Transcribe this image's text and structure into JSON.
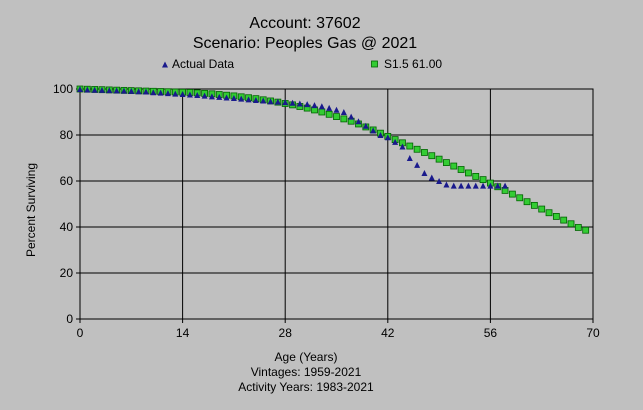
{
  "chart_data": {
    "type": "scatter",
    "title": "Account: 37602",
    "subtitle": "Scenario: Peoples Gas @ 2021",
    "xlabel": "Age (Years)",
    "ylabel": "Percent Surviving",
    "notes": [
      "Vintages: 1959-2021",
      "Activity Years: 1983-2021"
    ],
    "xlim": [
      0,
      70
    ],
    "ylim": [
      0,
      100
    ],
    "xticks": [
      0,
      14,
      28,
      42,
      56,
      70
    ],
    "yticks": [
      0,
      20,
      40,
      60,
      80,
      100
    ],
    "grid": true,
    "legend_position": "top",
    "series": [
      {
        "name": "Actual Data",
        "marker": "triangle",
        "color": "#1a1a8c",
        "points": [
          [
            0,
            100
          ],
          [
            1,
            99.8
          ],
          [
            2,
            99.7
          ],
          [
            3,
            99.6
          ],
          [
            4,
            99.5
          ],
          [
            5,
            99.4
          ],
          [
            6,
            99.3
          ],
          [
            7,
            99.2
          ],
          [
            8,
            99.0
          ],
          [
            9,
            98.9
          ],
          [
            10,
            98.6
          ],
          [
            11,
            98.4
          ],
          [
            12,
            98.2
          ],
          [
            13,
            98.0
          ],
          [
            14,
            97.8
          ],
          [
            15,
            97.6
          ],
          [
            16,
            97.4
          ],
          [
            17,
            97.1
          ],
          [
            18,
            96.8
          ],
          [
            19,
            96.6
          ],
          [
            20,
            96.3
          ],
          [
            21,
            96.1
          ],
          [
            22,
            95.8
          ],
          [
            23,
            95.5
          ],
          [
            24,
            95.2
          ],
          [
            25,
            95.0
          ],
          [
            26,
            94.7
          ],
          [
            27,
            94.5
          ],
          [
            28,
            94.3
          ],
          [
            29,
            94.0
          ],
          [
            30,
            93.7
          ],
          [
            31,
            93.4
          ],
          [
            32,
            93.0
          ],
          [
            33,
            92.5
          ],
          [
            34,
            91.8
          ],
          [
            35,
            91.0
          ],
          [
            36,
            90.0
          ],
          [
            37,
            88.0
          ],
          [
            38,
            86.0
          ],
          [
            39,
            84.0
          ],
          [
            40,
            82.0
          ],
          [
            41,
            80.0
          ],
          [
            42,
            79.0
          ],
          [
            43,
            77.0
          ],
          [
            44,
            75.0
          ],
          [
            45,
            70.0
          ],
          [
            46,
            67.0
          ],
          [
            47,
            63.5
          ],
          [
            48,
            61.5
          ],
          [
            49,
            60.0
          ],
          [
            50,
            58.5
          ],
          [
            51,
            58.0
          ],
          [
            52,
            58.0
          ],
          [
            53,
            58.0
          ],
          [
            54,
            58.0
          ],
          [
            55,
            58.0
          ],
          [
            56,
            58.0
          ],
          [
            57,
            58.0
          ],
          [
            58,
            58.0
          ]
        ]
      },
      {
        "name": "S1.5 61.00",
        "marker": "square",
        "color": "#33cc33",
        "points": [
          [
            0,
            100
          ],
          [
            1,
            99.9
          ],
          [
            2,
            99.8
          ],
          [
            3,
            99.7
          ],
          [
            4,
            99.6
          ],
          [
            5,
            99.5
          ],
          [
            6,
            99.4
          ],
          [
            7,
            99.3
          ],
          [
            8,
            99.2
          ],
          [
            9,
            99.1
          ],
          [
            10,
            99.0
          ],
          [
            11,
            98.9
          ],
          [
            12,
            98.8
          ],
          [
            13,
            98.7
          ],
          [
            14,
            98.6
          ],
          [
            15,
            98.5
          ],
          [
            16,
            98.3
          ],
          [
            17,
            98.1
          ],
          [
            18,
            97.9
          ],
          [
            19,
            97.6
          ],
          [
            20,
            97.3
          ],
          [
            21,
            97.0
          ],
          [
            22,
            96.6
          ],
          [
            23,
            96.2
          ],
          [
            24,
            95.8
          ],
          [
            25,
            95.3
          ],
          [
            26,
            94.8
          ],
          [
            27,
            94.3
          ],
          [
            28,
            93.7
          ],
          [
            29,
            93.1
          ],
          [
            30,
            92.4
          ],
          [
            31,
            91.7
          ],
          [
            32,
            90.9
          ],
          [
            33,
            90.0
          ],
          [
            34,
            89.0
          ],
          [
            35,
            88.0
          ],
          [
            36,
            87.0
          ],
          [
            37,
            86.0
          ],
          [
            38,
            84.8
          ],
          [
            39,
            83.5
          ],
          [
            40,
            82.2
          ],
          [
            41,
            80.8
          ],
          [
            42,
            79.4
          ],
          [
            43,
            78.0
          ],
          [
            44,
            76.6
          ],
          [
            45,
            75.2
          ],
          [
            46,
            73.8
          ],
          [
            47,
            72.4
          ],
          [
            48,
            71.0
          ],
          [
            49,
            69.5
          ],
          [
            50,
            68.0
          ],
          [
            51,
            66.5
          ],
          [
            52,
            65.0
          ],
          [
            53,
            63.5
          ],
          [
            54,
            62.0
          ],
          [
            55,
            60.6
          ],
          [
            56,
            59.1
          ],
          [
            57,
            57.5
          ],
          [
            58,
            55.9
          ],
          [
            59,
            54.3
          ],
          [
            60,
            52.7
          ],
          [
            61,
            51.0
          ],
          [
            62,
            49.4
          ],
          [
            63,
            47.8
          ],
          [
            64,
            46.2
          ],
          [
            65,
            44.6
          ],
          [
            66,
            43.0
          ],
          [
            67,
            41.4
          ],
          [
            68,
            39.8
          ],
          [
            69,
            38.6
          ]
        ]
      }
    ]
  }
}
